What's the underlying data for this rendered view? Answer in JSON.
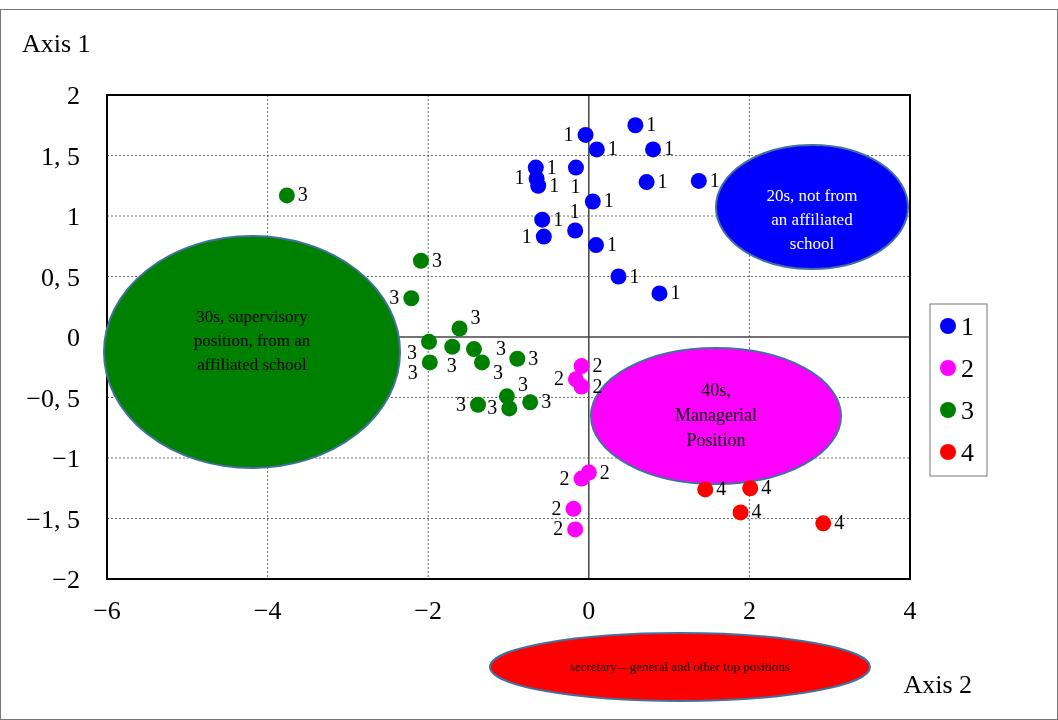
{
  "chart_data": {
    "type": "scatter",
    "xlabel": "Axis 2",
    "ylabel": "Axis 1",
    "xlim": [
      -6,
      4
    ],
    "xticks": [
      {
        "value": -6,
        "label": "−6"
      },
      {
        "value": -4,
        "label": "−4"
      },
      {
        "value": -2,
        "label": "−2"
      },
      {
        "value": 0,
        "label": "0"
      },
      {
        "value": 2,
        "label": "2"
      },
      {
        "value": 4,
        "label": "4"
      }
    ],
    "ylim": [
      -2,
      2
    ],
    "yticks": [
      {
        "value": -2,
        "label": "−2"
      },
      {
        "value": -1.5,
        "label": "−1, 5"
      },
      {
        "value": -1,
        "label": "−1"
      },
      {
        "value": -0.5,
        "label": "−0, 5"
      },
      {
        "value": 0,
        "label": "0"
      },
      {
        "value": 0.5,
        "label": "0, 5"
      },
      {
        "value": 1,
        "label": "1"
      },
      {
        "value": 1.5,
        "label": "1, 5"
      },
      {
        "value": 2,
        "label": "2"
      }
    ],
    "grid": true,
    "legend": "right",
    "marker": "circle",
    "series": [
      {
        "name": "1",
        "color": "#0000ff",
        "x": [
          -0.04,
          0.58,
          0.1,
          0.8,
          -0.66,
          -0.65,
          -0.63,
          -0.16,
          0.72,
          1.37,
          0.05,
          -0.58,
          -0.56,
          -0.17,
          0.09,
          0.37,
          0.88
        ],
        "values": [
          1.67,
          1.75,
          1.55,
          1.55,
          1.4,
          1.31,
          1.25,
          1.4,
          1.28,
          1.29,
          1.12,
          0.97,
          0.83,
          0.88,
          0.76,
          0.5,
          0.36
        ]
      },
      {
        "name": "2",
        "color": "#ff00ff",
        "x": [
          -0.09,
          -0.16,
          -0.09,
          0.0,
          -0.09,
          -0.19,
          -0.17
        ],
        "values": [
          -0.24,
          -0.35,
          -0.41,
          -1.12,
          -1.17,
          -1.42,
          -1.59
        ]
      },
      {
        "name": "3",
        "color": "#008000",
        "x": [
          -3.76,
          -2.09,
          -2.21,
          -1.61,
          -1.99,
          -1.7,
          -1.43,
          -1.33,
          -1.98,
          -0.89,
          -1.38,
          -1.02,
          -0.99,
          -0.73
        ],
        "values": [
          1.17,
          0.63,
          0.32,
          0.07,
          -0.04,
          -0.08,
          -0.1,
          -0.21,
          -0.21,
          -0.18,
          -0.56,
          -0.49,
          -0.59,
          -0.54
        ]
      },
      {
        "name": "4",
        "color": "#ff0000",
        "x": [
          1.45,
          2.01,
          1.89,
          2.92
        ],
        "values": [
          -1.26,
          -1.25,
          -1.45,
          -1.54
        ]
      }
    ],
    "annotations": [
      "20s, not from an affiliated school",
      "40s, Managerial Position",
      "30s, supervisory position, from an affiliated school",
      "secretary—general and other top positions"
    ]
  }
}
